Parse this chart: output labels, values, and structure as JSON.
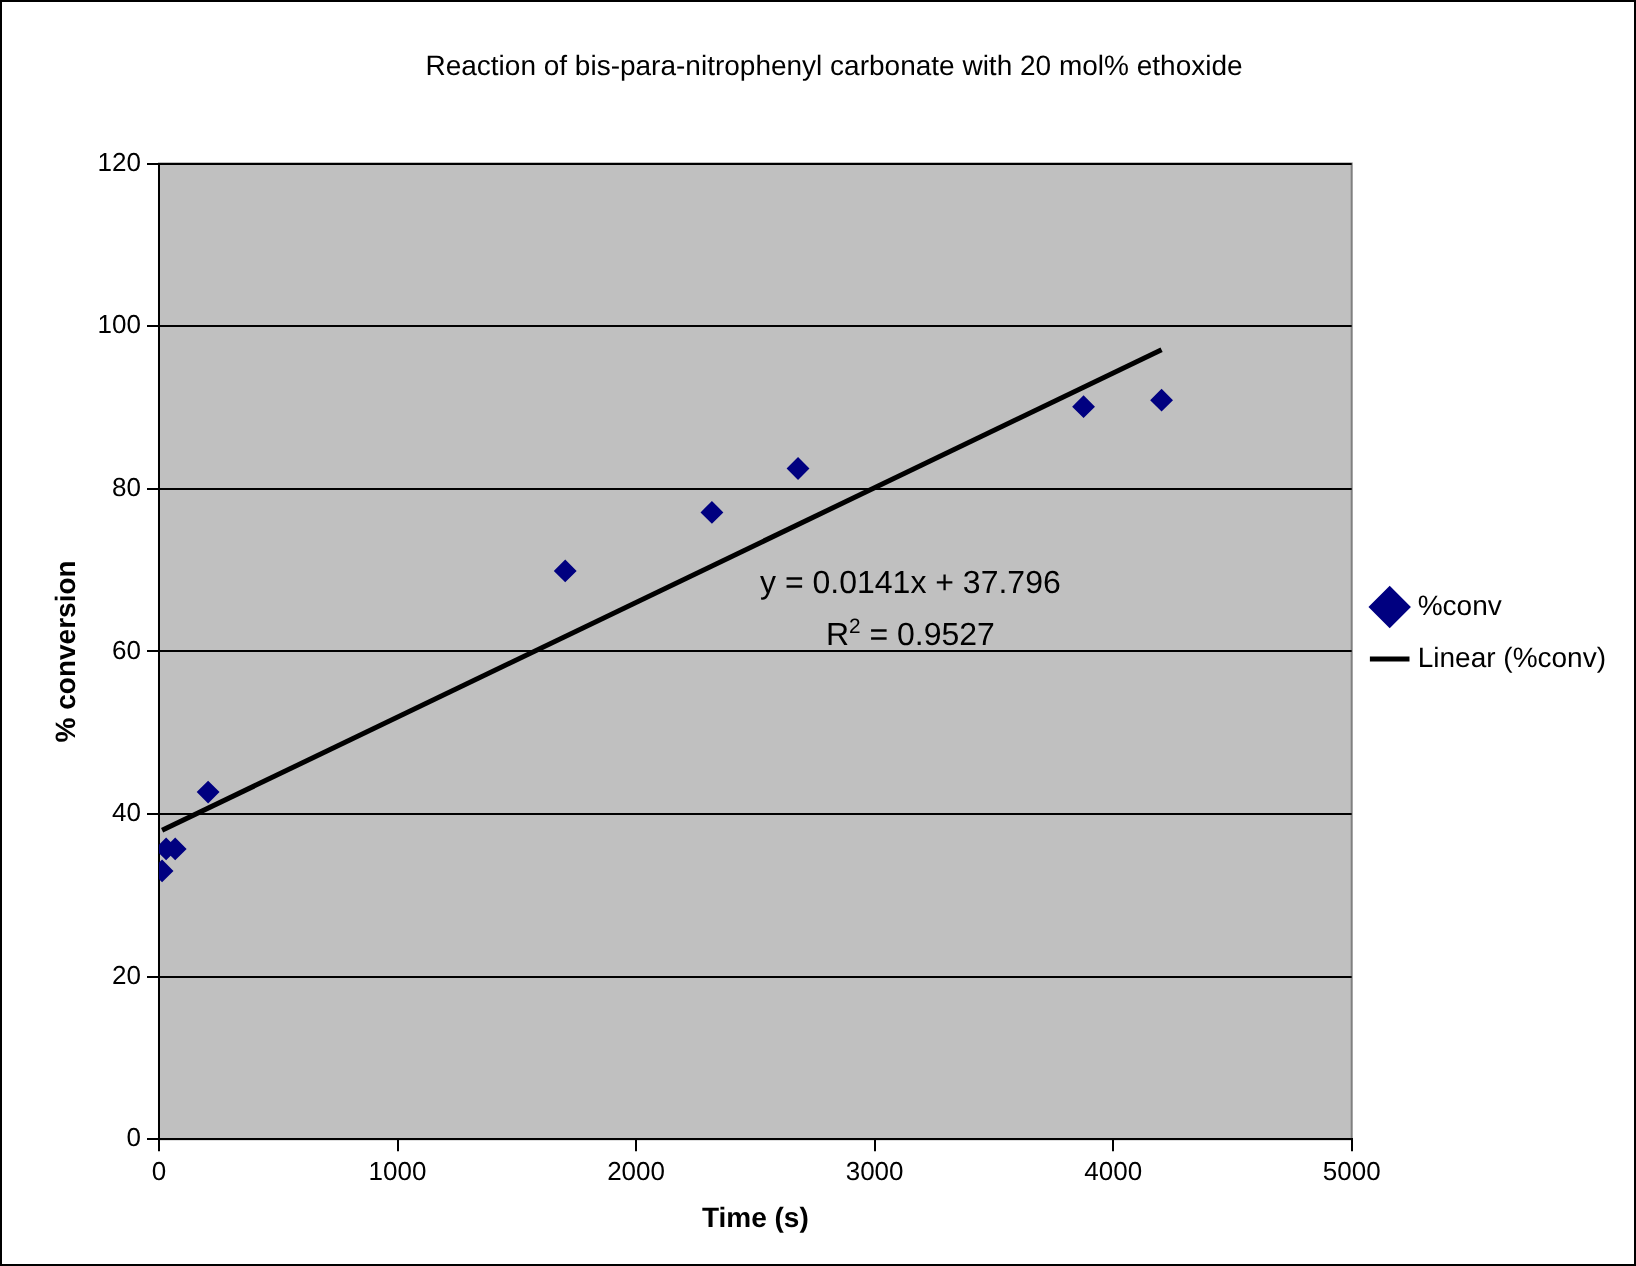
{
  "chart_data": {
    "type": "scatter",
    "title": "Reaction of bis-para-nitrophenyl carbonate with 20 mol% ethoxide",
    "xlabel": "Time (s)",
    "ylabel": "% conversion",
    "series": [
      {
        "name": "%conv",
        "color": "#000080",
        "marker": "diamond",
        "x": [
          13,
          30,
          68,
          206,
          1703,
          2318,
          2679,
          3876,
          4203
        ],
        "values": [
          33.0,
          35.7,
          35.7,
          42.7,
          69.9,
          77.1,
          82.5,
          90.1,
          90.9
        ]
      },
      {
        "name": "Linear (%conv)",
        "type": "line",
        "color": "#000000",
        "marker": "none",
        "line_style": "solid",
        "x": [
          13,
          4203
        ],
        "values": [
          38.0,
          97.1
        ]
      }
    ],
    "annotations": [
      "y = 0.0141x + 37.796",
      "R$^{2}$ = 0.9527"
    ],
    "xlim": [
      0,
      5000
    ],
    "xticks": [
      0,
      1000,
      2000,
      3000,
      4000,
      5000
    ],
    "ylim": [
      0,
      120
    ],
    "yticks": [
      0,
      20,
      40,
      60,
      80,
      100,
      120
    ],
    "grid": "y",
    "legend": "right"
  }
}
